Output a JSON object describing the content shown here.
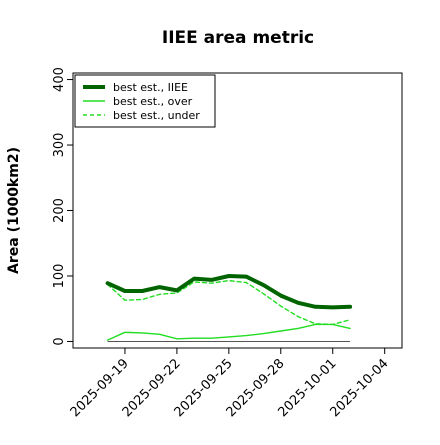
{
  "chart_data": {
    "type": "line",
    "title": "IIEE area metric",
    "xlabel": "",
    "ylabel": "Area (1000km2)",
    "x_ticks": [
      "2025-09-19",
      "2025-09-22",
      "2025-09-25",
      "2025-09-28",
      "2025-10-01",
      "2025-10-04"
    ],
    "y_ticks": [
      "0",
      "100",
      "200",
      "300",
      "400"
    ],
    "ylim": [
      -10,
      410
    ],
    "xlim": [
      "2025-09-16",
      "2025-10-05"
    ],
    "grid": false,
    "legend_position": "top-left",
    "x": [
      "2025-09-18",
      "2025-09-19",
      "2025-09-20",
      "2025-09-21",
      "2025-09-22",
      "2025-09-23",
      "2025-09-24",
      "2025-09-25",
      "2025-09-26",
      "2025-09-27",
      "2025-09-28",
      "2025-09-29",
      "2025-09-30",
      "2025-10-01",
      "2025-10-02"
    ],
    "series": [
      {
        "name": "best est., IIEE",
        "color": "#006400",
        "style": "solid-thick",
        "values": [
          89,
          77,
          77,
          83,
          78,
          96,
          94,
          100,
          99,
          86,
          70,
          59,
          53,
          52,
          53
        ]
      },
      {
        "name": "best est., over",
        "color": "#22dd22",
        "style": "solid",
        "values": [
          2,
          14,
          13,
          11,
          4,
          5,
          5,
          7,
          9,
          12,
          16,
          20,
          26,
          26,
          20
        ]
      },
      {
        "name": "best est., under",
        "color": "#22dd22",
        "style": "dashed",
        "values": [
          87,
          63,
          64,
          72,
          74,
          91,
          89,
          93,
          90,
          73,
          54,
          38,
          27,
          26,
          33
        ]
      }
    ],
    "baseline": {
      "value": 0,
      "color": "#555555"
    }
  }
}
